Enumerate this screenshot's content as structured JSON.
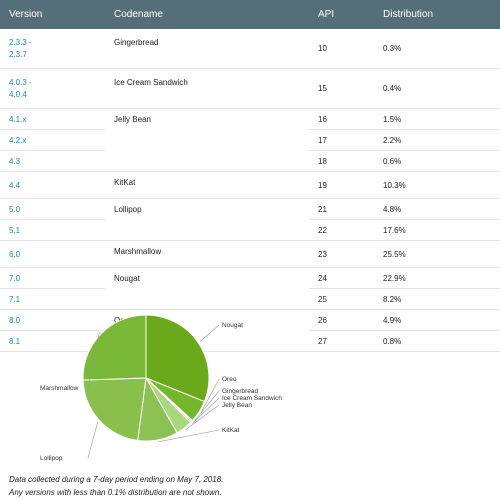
{
  "table": {
    "headers": {
      "version": "Version",
      "codename": "Codename",
      "api": "API",
      "distribution": "Distribution"
    },
    "groups": [
      {
        "codename": "Gingerbread",
        "rows": [
          {
            "version": "2.3.3 -\n2.3.7",
            "api": "10",
            "distribution": "0.3%"
          }
        ]
      },
      {
        "codename": "Ice Cream Sandwich",
        "rows": [
          {
            "version": "4.0.3 -\n4.0.4",
            "api": "15",
            "distribution": "0.4%"
          }
        ]
      },
      {
        "codename": "Jelly Bean",
        "rows": [
          {
            "version": "4.1.x",
            "api": "16",
            "distribution": "1.5%"
          },
          {
            "version": "4.2.x",
            "api": "17",
            "distribution": "2.2%"
          },
          {
            "version": "4.3",
            "api": "18",
            "distribution": "0.6%"
          }
        ]
      },
      {
        "codename": "KitKat",
        "rows": [
          {
            "version": "4.4",
            "api": "19",
            "distribution": "10.3%"
          }
        ]
      },
      {
        "codename": "Lollipop",
        "rows": [
          {
            "version": "5.0",
            "api": "21",
            "distribution": "4.8%"
          },
          {
            "version": "5.1",
            "api": "22",
            "distribution": "17.6%"
          }
        ]
      },
      {
        "codename": "Marshmallow",
        "rows": [
          {
            "version": "6.0",
            "api": "23",
            "distribution": "25.5%"
          }
        ]
      },
      {
        "codename": "Nougat",
        "rows": [
          {
            "version": "7.0",
            "api": "24",
            "distribution": "22.9%"
          },
          {
            "version": "7.1",
            "api": "25",
            "distribution": "8.2%"
          }
        ]
      },
      {
        "codename": "Oreo",
        "rows": [
          {
            "version": "8.0",
            "api": "26",
            "distribution": "4.9%"
          },
          {
            "version": "8.1",
            "api": "27",
            "distribution": "0.8%"
          }
        ]
      }
    ]
  },
  "chart_data": {
    "type": "pie",
    "categories": [
      "Nougat",
      "Oreo",
      "Gingerbread",
      "Ice Cream Sandwich",
      "Jelly Bean",
      "KitKat",
      "Lollipop",
      "Marshmallow"
    ],
    "values": [
      31.1,
      5.7,
      0.3,
      0.4,
      4.3,
      10.3,
      22.4,
      25.5
    ],
    "colors": [
      "#6aaa1a",
      "#74b72d",
      "#94cc66",
      "#9fd274",
      "#a9d780",
      "#8cc253",
      "#88c04b",
      "#7ab938"
    ],
    "label_color": "#333333",
    "leader_color": "#999999"
  },
  "footnote": {
    "line1": "Data collected during a 7-day period ending on May 7, 2018.",
    "line2": "Any versions with less than 0.1% distribution are not shown."
  }
}
